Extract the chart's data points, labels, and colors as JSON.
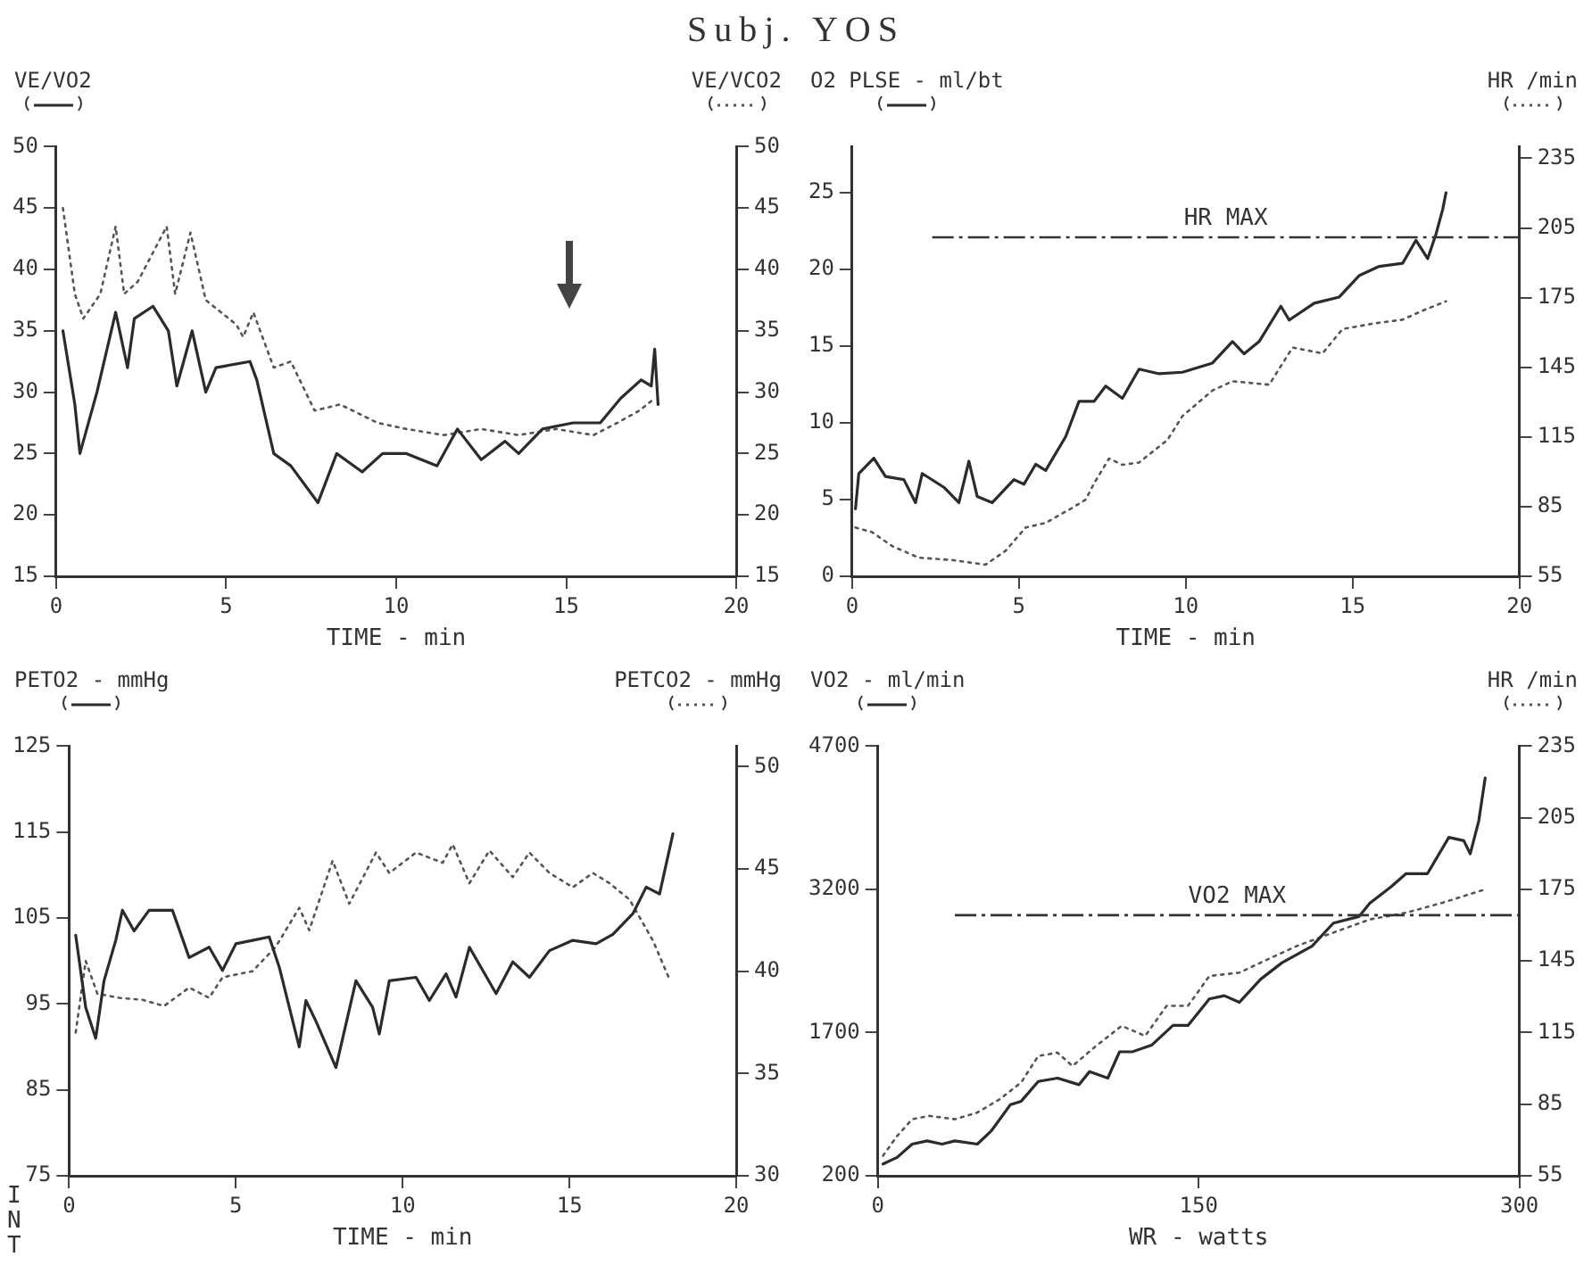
{
  "chart_data": [
    {
      "type": "line",
      "title": "Subj. YOS",
      "ylabel": "VE/VO2",
      "y2label": "VE/VCO2",
      "xlabel": "TIME - min",
      "xlim": [
        0,
        20
      ],
      "xticks": [
        0,
        5,
        10,
        15,
        20
      ],
      "ylim": [
        15,
        50
      ],
      "yticks": [
        15,
        20,
        25,
        30,
        35,
        40,
        45,
        50
      ],
      "y2lim": [
        15,
        50
      ],
      "y2ticks": [
        15,
        20,
        25,
        30,
        35,
        40,
        45,
        50
      ],
      "grid": false,
      "series": [
        {
          "type": "line",
          "axis": "y",
          "line_style": "solid",
          "color": "#2b2b2b",
          "x": [
            0.2,
            0.55,
            0.7,
            1.2,
            1.75,
            2.1,
            2.3,
            2.85,
            3.3,
            3.55,
            4.0,
            4.4,
            4.7,
            5.7,
            5.9,
            6.4,
            6.9,
            7.7,
            8.25,
            9.0,
            9.6,
            10.3,
            11.2,
            11.8,
            12.5,
            13.2,
            13.6,
            14.3,
            15.2,
            16.0,
            16.6,
            17.2,
            17.5,
            17.6,
            17.7
          ],
          "values": [
            35,
            29,
            25,
            30,
            36.5,
            32,
            36,
            37,
            35,
            30.5,
            35,
            30,
            32,
            32.5,
            31,
            25,
            24,
            21,
            25,
            23.5,
            25,
            25,
            24,
            27,
            24.5,
            26,
            25,
            27,
            27.5,
            27.5,
            29.5,
            31,
            30.5,
            33.5,
            29
          ]
        },
        {
          "type": "line",
          "axis": "y2",
          "line_style": "dotted",
          "color": "#555555",
          "x": [
            0.2,
            0.55,
            0.8,
            1.3,
            1.75,
            2.0,
            2.4,
            3.25,
            3.5,
            3.95,
            4.4,
            5.3,
            5.5,
            5.8,
            6.4,
            6.9,
            7.6,
            8.35,
            9.45,
            10.3,
            11.4,
            12.5,
            13.6,
            14.7,
            15.8,
            16.5,
            17.15,
            17.6
          ],
          "values": [
            45,
            38,
            36,
            38,
            43.5,
            38,
            39,
            43.5,
            38,
            43,
            37.5,
            35.5,
            34.5,
            36.5,
            32,
            32.5,
            28.5,
            29,
            27.5,
            27,
            26.5,
            27,
            26.5,
            27,
            26.5,
            27.5,
            28.5,
            29.5
          ]
        }
      ]
    },
    {
      "type": "line",
      "ylabel": "O2 PLSE - ml/bt",
      "y2label": "HR /min",
      "xlabel": "TIME - min",
      "xlim": [
        0,
        20
      ],
      "xticks": [
        0,
        5,
        10,
        15,
        20
      ],
      "ylim": [
        0,
        28
      ],
      "yticks": [
        0,
        5,
        10,
        15,
        20,
        25
      ],
      "y2lim": [
        55,
        240
      ],
      "y2ticks": [
        55,
        85,
        115,
        145,
        175,
        205,
        235
      ],
      "grid": false,
      "ref_lines": [
        {
          "axis": "y2",
          "value": 201,
          "label": "HR MAX",
          "line_style": "dashdot"
        }
      ],
      "series": [
        {
          "type": "line",
          "axis": "y",
          "line_style": "solid",
          "color": "#2b2b2b",
          "x": [
            0.1,
            0.2,
            0.65,
            1.0,
            1.55,
            1.9,
            2.1,
            2.75,
            3.2,
            3.5,
            3.75,
            4.2,
            4.85,
            5.15,
            5.5,
            5.8,
            6.4,
            6.8,
            7.25,
            7.6,
            8.1,
            8.6,
            9.2,
            9.9,
            10.8,
            11.4,
            11.75,
            12.2,
            12.85,
            13.1,
            13.85,
            14.6,
            15.2,
            15.8,
            16.5,
            16.9,
            17.25,
            17.5,
            17.7,
            17.8
          ],
          "values": [
            4.4,
            6.7,
            7.7,
            6.5,
            6.3,
            4.8,
            6.7,
            5.8,
            4.8,
            7.5,
            5.2,
            4.8,
            6.3,
            6.0,
            7.3,
            6.9,
            9.1,
            11.4,
            11.4,
            12.4,
            11.6,
            13.5,
            13.2,
            13.3,
            13.9,
            15.3,
            14.5,
            15.3,
            17.6,
            16.7,
            17.8,
            18.2,
            19.6,
            20.2,
            20.4,
            21.9,
            20.7,
            22.3,
            23.9,
            25
          ]
        },
        {
          "type": "line",
          "axis": "y2",
          "line_style": "dotted",
          "color": "#555555",
          "x": [
            0.1,
            0.6,
            1.2,
            2.0,
            3.0,
            4.0,
            4.6,
            5.2,
            5.8,
            6.6,
            7.0,
            7.25,
            7.7,
            8.1,
            8.6,
            9.45,
            9.9,
            10.8,
            11.4,
            12.5,
            13.2,
            14.1,
            14.7,
            15.7,
            16.5,
            17.1,
            17.8
          ],
          "values": [
            76,
            74,
            68,
            63,
            62,
            60,
            66,
            76,
            78,
            84.5,
            88,
            95,
            105.7,
            103,
            104,
            113.7,
            124,
            135,
            139,
            137.5,
            153.5,
            151,
            161.5,
            164,
            165.5,
            169.4,
            173.4
          ]
        }
      ]
    },
    {
      "type": "line",
      "ylabel": "PETO2 - mmHg",
      "y2label": "PETCO2 - mmHg",
      "xlabel": "TIME - min",
      "xlim": [
        0,
        20
      ],
      "xticks": [
        0,
        5,
        10,
        15,
        20
      ],
      "ylim": [
        75,
        125
      ],
      "yticks": [
        75,
        85,
        95,
        105,
        115,
        125
      ],
      "y2lim": [
        30,
        51
      ],
      "y2ticks": [
        30,
        35,
        40,
        45,
        50
      ],
      "grid": false,
      "annotations": [
        "INT"
      ],
      "series": [
        {
          "type": "line",
          "axis": "y",
          "line_style": "solid",
          "color": "#2b2b2b",
          "x": [
            0.2,
            0.5,
            0.8,
            1.05,
            1.4,
            1.6,
            1.95,
            2.4,
            3.1,
            3.6,
            4.2,
            4.6,
            5.0,
            5.5,
            6.0,
            6.3,
            6.9,
            7.1,
            7.4,
            8.0,
            8.6,
            9.1,
            9.3,
            9.6,
            10.4,
            10.8,
            11.3,
            11.6,
            12.0,
            12.8,
            13.3,
            13.8,
            14.4,
            15.1,
            15.8,
            16.3,
            16.9,
            17.3,
            17.7,
            18.1
          ],
          "values": [
            103,
            94.6,
            91,
            97.7,
            102.4,
            105.9,
            103.5,
            105.9,
            105.9,
            100.4,
            101.6,
            98.9,
            102,
            102.4,
            102.8,
            99.3,
            90,
            95.4,
            93,
            87.6,
            97.7,
            94.6,
            91.5,
            97.7,
            98.1,
            95.4,
            98.5,
            95.8,
            101.6,
            96.2,
            99.9,
            98.1,
            101.2,
            102.4,
            102,
            103.1,
            105.5,
            108.6,
            107.8,
            114.8
          ]
        },
        {
          "type": "line",
          "axis": "y2",
          "line_style": "dotted",
          "color": "#555555",
          "x": [
            0.2,
            0.5,
            0.85,
            1.5,
            2.2,
            2.85,
            3.6,
            4.2,
            4.6,
            5.5,
            6.2,
            6.9,
            7.2,
            7.9,
            8.4,
            9.2,
            9.6,
            10.4,
            11.2,
            11.5,
            12.0,
            12.6,
            13.3,
            13.8,
            14.4,
            15.1,
            15.7,
            16.2,
            16.8,
            17.5,
            18.0
          ],
          "values": [
            37,
            40.5,
            38.9,
            38.7,
            38.6,
            38.3,
            39.2,
            38.7,
            39.7,
            40,
            41.2,
            43.1,
            42,
            45.4,
            43.3,
            45.8,
            44.8,
            45.8,
            45.3,
            46.2,
            44.3,
            45.9,
            44.6,
            45.8,
            44.8,
            44.1,
            44.8,
            44.3,
            43.5,
            41.5,
            39.6
          ]
        }
      ]
    },
    {
      "type": "line",
      "ylabel": "VO2 - ml/min",
      "y2label": "HR /min",
      "xlabel": "WR - watts",
      "xlim": [
        0,
        300
      ],
      "xticks": [
        0,
        150,
        300
      ],
      "ylim": [
        200,
        4700
      ],
      "yticks": [
        200,
        1700,
        3200,
        4700
      ],
      "y2lim": [
        55,
        235
      ],
      "y2ticks": [
        55,
        85,
        115,
        145,
        175,
        205,
        235
      ],
      "grid": false,
      "ref_lines": [
        {
          "axis": "y",
          "value": 2930,
          "label": "VO2 MAX",
          "line_style": "dashdot"
        }
      ],
      "series": [
        {
          "type": "line",
          "axis": "y",
          "line_style": "solid",
          "color": "#2b2b2b",
          "x": [
            2.4,
            9,
            16,
            23,
            30,
            36,
            46.5,
            53,
            62,
            67,
            75,
            84,
            94,
            99,
            107.5,
            113,
            119,
            128,
            138,
            145,
            155,
            162,
            169,
            179,
            189,
            203,
            213,
            225,
            230,
            240,
            247,
            257,
            267,
            274,
            277,
            281,
            284
          ],
          "values": [
            324,
            393,
            532,
            566,
            532,
            566,
            532,
            670,
            946,
            981,
            1188,
            1223,
            1154,
            1292,
            1223,
            1499,
            1499,
            1568,
            1775,
            1775,
            2052,
            2086,
            2017,
            2259,
            2432,
            2605,
            2847,
            2916,
            3054,
            3227,
            3365,
            3365,
            3745,
            3710,
            3572,
            3918,
            4367
          ]
        },
        {
          "type": "line",
          "axis": "y2",
          "line_style": "dotted",
          "color": "#555555",
          "x": [
            2.4,
            9,
            16,
            24,
            36,
            46.5,
            57,
            67,
            75,
            84,
            91,
            102,
            114,
            125,
            135,
            145,
            155,
            169,
            179,
            196,
            213,
            230,
            247,
            264,
            284
          ],
          "values": [
            63.4,
            71.7,
            78.7,
            80.1,
            78.7,
            81.5,
            87.1,
            94.1,
            105.2,
            106.6,
            101,
            109.4,
            117.8,
            113.6,
            126.2,
            126.2,
            138.7,
            140.1,
            144.3,
            151.3,
            156.9,
            162.4,
            165.2,
            169.4,
            175
          ]
        }
      ]
    }
  ]
}
